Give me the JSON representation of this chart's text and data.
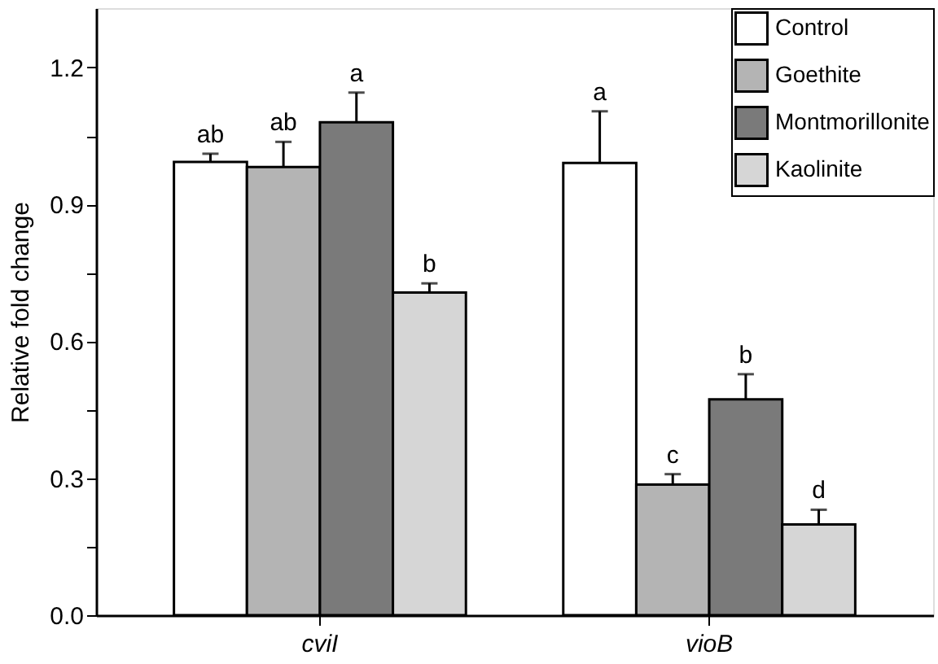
{
  "chart_data": {
    "type": "bar",
    "ylabel": "Relative fold change",
    "categories": [
      "cviI",
      "vioB"
    ],
    "series": [
      {
        "name": "Control",
        "color": "#ffffff",
        "values": [
          0.993,
          0.991
        ],
        "errors": [
          [
            0.993,
            1.011
          ],
          [
            0.991,
            1.104
          ]
        ],
        "value_labels": [
          "ab",
          "a"
        ]
      },
      {
        "name": "Goethite",
        "color": "#b4b4b4",
        "values": [
          0.982,
          0.286
        ],
        "errors": [
          [
            0.982,
            1.037
          ],
          [
            0.286,
            0.309
          ]
        ],
        "value_labels": [
          "ab",
          "c"
        ]
      },
      {
        "name": "Montmorillonite",
        "color": "#7a7a7a",
        "values": [
          1.08,
          0.473
        ],
        "errors": [
          [
            1.08,
            1.145
          ],
          [
            0.473,
            0.528
          ]
        ],
        "value_labels": [
          "a",
          "b"
        ]
      },
      {
        "name": "Kaolinite",
        "color": "#d6d6d6",
        "values": [
          0.707,
          0.199
        ],
        "errors": [
          [
            0.707,
            0.727
          ],
          [
            0.199,
            0.231
          ]
        ],
        "value_labels": [
          "b",
          "d"
        ]
      }
    ],
    "ylim": [
      0,
      1.33
    ],
    "yticks": [
      {
        "value": 0,
        "label": "0.0"
      },
      {
        "value": 0.15,
        "label": null
      },
      0.3,
      {
        "value": 0.45,
        "label": null
      },
      0.6,
      {
        "value": 0.75,
        "label": null
      },
      0.9,
      {
        "value": 1.05,
        "label": null
      },
      1.2
    ],
    "legend": "top right"
  }
}
